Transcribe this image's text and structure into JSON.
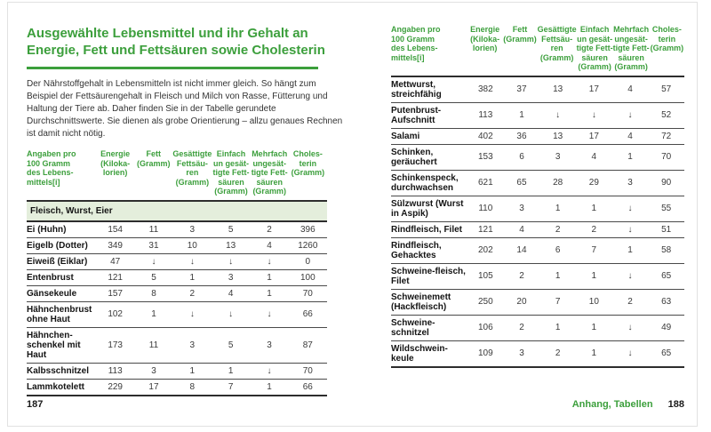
{
  "colors": {
    "green": "#3c9f3c",
    "section_bg": "#e4eedc"
  },
  "page_left": {
    "title": "Ausgewählte Lebensmittel und ihr Gehalt an Energie, Fett und Fettsäuren sowie Cholesterin",
    "intro": "Der Nährstoffgehalt in Lebensmitteln ist nicht immer gleich. So hängt zum Beispiel der Fettsäurengehalt in Fleisch und Milch von Rasse, Fütterung und Haltung der Tiere ab. Daher finden Sie in der Tabelle gerundete Durchschnittswerte. Sie dienen als grobe Orientierung – allzu genaues Rechnen ist damit nicht nötig."
  },
  "footer": {
    "left_page_number": "187",
    "section_label": "Anhang, Tabellen",
    "right_page_number": "188"
  },
  "table": {
    "headers": [
      "Angaben pro\n100 Gramm\ndes Lebens-\nmittels[i]",
      "Energie\n(Kiloka-\nlorien)",
      "Fett\n(Gramm)",
      "Gesättigte\nFettsäu-\nren\n(Gramm)",
      "Einfach\nun gesät-\ntigte Fett-\nsäuren\n(Gramm)",
      "Mehrfach\nungesät-\ntigte Fett-\nsäuren\n(Gramm)",
      "Choles-\nterin\n(Gramm)"
    ],
    "section_header": "Fleisch, Wurst, Eier",
    "left_rows": [
      {
        "name": "Ei (Huhn)",
        "values": [
          "154",
          "11",
          "3",
          "5",
          "2",
          "396"
        ]
      },
      {
        "name": "Eigelb (Dotter)",
        "values": [
          "349",
          "31",
          "10",
          "13",
          "4",
          "1260"
        ]
      },
      {
        "name": "Eiweiß (Eiklar)",
        "values": [
          "47",
          "↓",
          "↓",
          "↓",
          "↓",
          "0"
        ]
      },
      {
        "name": "Entenbrust",
        "values": [
          "121",
          "5",
          "1",
          "3",
          "1",
          "100"
        ]
      },
      {
        "name": "Gänsekeule",
        "values": [
          "157",
          "8",
          "2",
          "4",
          "1",
          "70"
        ]
      },
      {
        "name": "Hähnchenbrust ohne Haut",
        "values": [
          "102",
          "1",
          "↓",
          "↓",
          "↓",
          "66"
        ]
      },
      {
        "name": "Hähnchen-schenkel mit Haut",
        "values": [
          "173",
          "11",
          "3",
          "5",
          "3",
          "87"
        ]
      },
      {
        "name": "Kalbsschnitzel",
        "values": [
          "113",
          "3",
          "1",
          "1",
          "↓",
          "70"
        ]
      },
      {
        "name": "Lammkotelett",
        "values": [
          "229",
          "17",
          "8",
          "7",
          "1",
          "66"
        ]
      }
    ],
    "right_rows": [
      {
        "name": "Mettwurst, streichfähig",
        "values": [
          "382",
          "37",
          "13",
          "17",
          "4",
          "57"
        ]
      },
      {
        "name": "Putenbrust-Aufschnitt",
        "values": [
          "113",
          "1",
          "↓",
          "↓",
          "↓",
          "52"
        ]
      },
      {
        "name": "Salami",
        "values": [
          "402",
          "36",
          "13",
          "17",
          "4",
          "72"
        ]
      },
      {
        "name": "Schinken, geräuchert",
        "values": [
          "153",
          "6",
          "3",
          "4",
          "1",
          "70"
        ]
      },
      {
        "name": "Schinkenspeck, durchwachsen",
        "values": [
          "621",
          "65",
          "28",
          "29",
          "3",
          "90"
        ]
      },
      {
        "name": "Sülzwurst (Wurst in Aspik)",
        "values": [
          "110",
          "3",
          "1",
          "1",
          "↓",
          "55"
        ]
      },
      {
        "name": "Rindfleisch, Filet",
        "values": [
          "121",
          "4",
          "2",
          "2",
          "↓",
          "51"
        ]
      },
      {
        "name": "Rindfleisch, Gehacktes",
        "values": [
          "202",
          "14",
          "6",
          "7",
          "1",
          "58"
        ]
      },
      {
        "name": "Schweine-fleisch, Filet",
        "values": [
          "105",
          "2",
          "1",
          "1",
          "↓",
          "65"
        ]
      },
      {
        "name": "Schweinemett (Hackfleisch)",
        "values": [
          "250",
          "20",
          "7",
          "10",
          "2",
          "63"
        ]
      },
      {
        "name": "Schweine-schnitzel",
        "values": [
          "106",
          "2",
          "1",
          "1",
          "↓",
          "49"
        ]
      },
      {
        "name": "Wildschwein-keule",
        "values": [
          "109",
          "3",
          "2",
          "1",
          "↓",
          "65"
        ]
      }
    ]
  }
}
